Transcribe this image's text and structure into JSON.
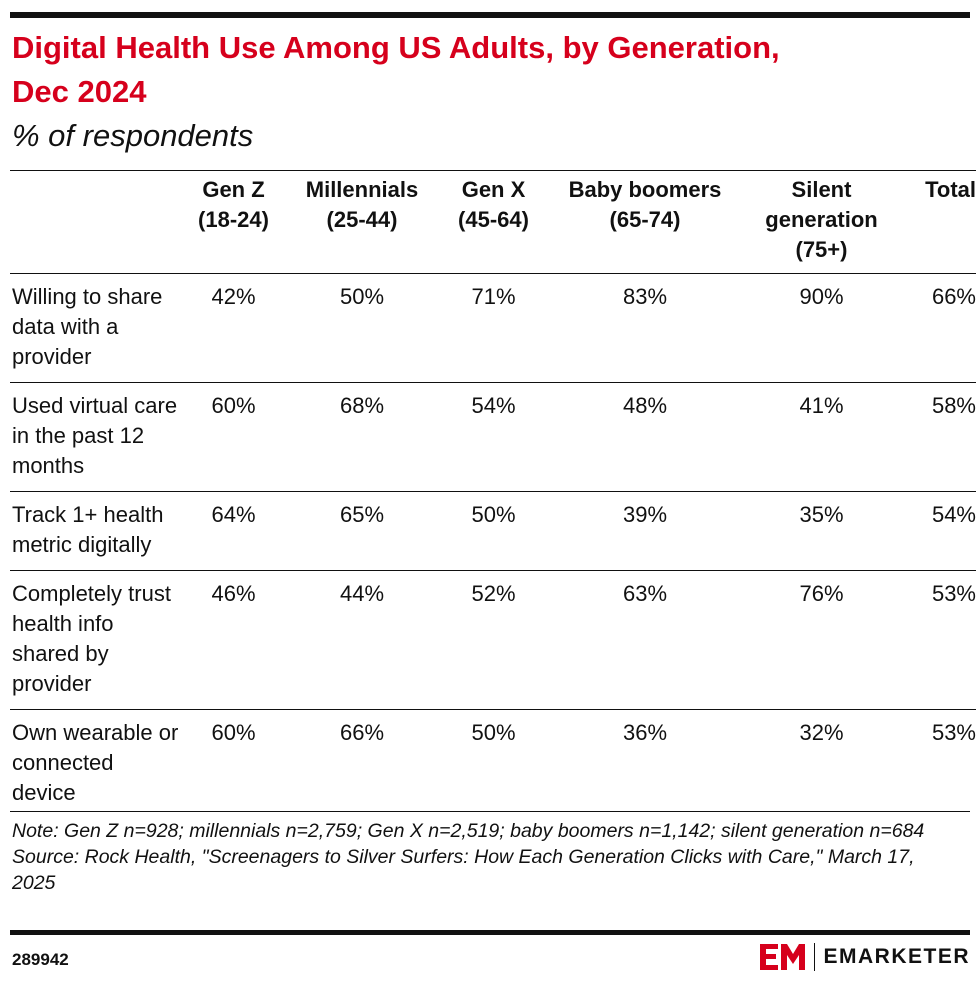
{
  "header": {
    "title": "Digital Health Use Among US Adults, by Generation, Dec 2024",
    "subtitle": "% of respondents"
  },
  "table": {
    "columns": [
      [
        "Gen Z",
        "(18-24)"
      ],
      [
        "Millennials",
        "(25-44)"
      ],
      [
        "Gen X",
        "(45-64)"
      ],
      [
        "Baby boomers",
        "(65-74)"
      ],
      [
        "Silent",
        "generation",
        "(75+)"
      ],
      [
        "Total"
      ]
    ],
    "rows": [
      [
        "Willing to share data with a provider",
        "42%",
        "50%",
        "71%",
        "83%",
        "90%",
        "66%"
      ],
      [
        "Used virtual care in the past 12 months",
        "60%",
        "68%",
        "54%",
        "48%",
        "41%",
        "58%"
      ],
      [
        "Track 1+ health metric digitally",
        "64%",
        "65%",
        "50%",
        "39%",
        "35%",
        "54%"
      ],
      [
        "Completely trust health info shared by provider",
        "46%",
        "44%",
        "52%",
        "63%",
        "76%",
        "53%"
      ],
      [
        "Own wearable or connected device",
        "60%",
        "66%",
        "50%",
        "36%",
        "32%",
        "53%"
      ]
    ]
  },
  "footer": {
    "note": "Note: Gen Z n=928; millennials n=2,759; Gen X n=2,519; baby boomers n=1,142; silent generation n=684",
    "source": "Source: Rock Health, \"Screenagers to Silver Surfers: How Each Generation Clicks with Care,\" March 17, 2025",
    "id": "289942",
    "logo": "EMARKETER"
  }
}
